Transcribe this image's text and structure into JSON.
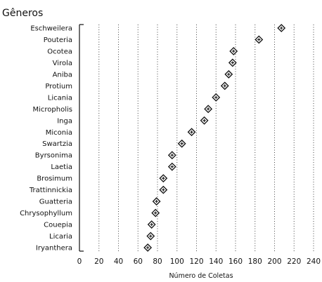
{
  "chart_data": {
    "type": "scatter",
    "title": "Gêneros",
    "xlabel": "Número de Coletas",
    "ylabel": "",
    "xlim": [
      0,
      240
    ],
    "x_ticks": [
      0,
      20,
      40,
      60,
      80,
      100,
      120,
      140,
      160,
      180,
      200,
      220,
      240
    ],
    "grid": "vertical-dotted",
    "marker": "diamond-cross",
    "categories": [
      "Eschweilera",
      "Pouteria",
      "Ocotea",
      "Virola",
      "Aniba",
      "Protium",
      "Licania",
      "Micropholis",
      "Inga",
      "Miconia",
      "Swartzia",
      "Byrsonima",
      "Laetia",
      "Brosimum",
      "Trattinnickia",
      "Guatteria",
      "Chrysophyllum",
      "Couepia",
      "Licaria",
      "Iryanthera"
    ],
    "values": [
      207,
      184,
      158,
      157,
      153,
      149,
      140,
      132,
      128,
      115,
      105,
      95,
      95,
      86,
      86,
      79,
      78,
      74,
      73,
      70
    ]
  }
}
